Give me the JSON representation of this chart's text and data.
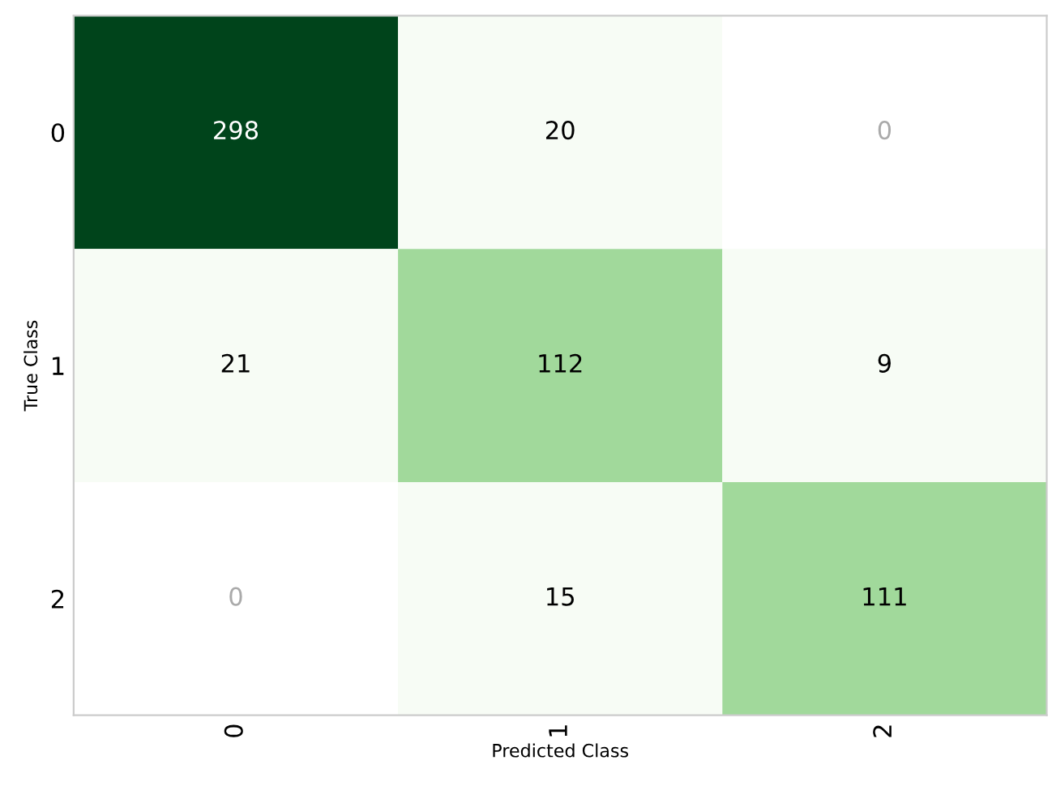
{
  "chart_data": {
    "type": "heatmap",
    "categories": [
      "0",
      "1",
      "2"
    ],
    "y_categories": [
      "0",
      "1",
      "2"
    ],
    "xlabel": "Predicted Class",
    "ylabel": "True Class",
    "cells": [
      [
        298,
        20,
        0
      ],
      [
        21,
        112,
        9
      ],
      [
        0,
        15,
        111
      ]
    ],
    "colors": [
      [
        "#00441b",
        "#f7fcf5",
        "#ffffff"
      ],
      [
        "#f7fcf5",
        "#a1d99b",
        "#f7fcf5"
      ],
      [
        "#ffffff",
        "#f7fcf5",
        "#a1d99b"
      ]
    ],
    "data_labels": true,
    "grid": false
  }
}
